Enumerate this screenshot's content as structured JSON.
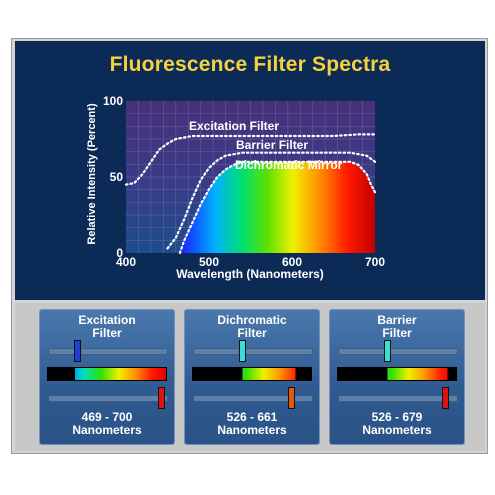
{
  "title": "Fluorescence Filter Spectra",
  "colors": {
    "title": "#f5d23c",
    "panel_bg": "#0b2a55",
    "card_bg": "#3a6aa0",
    "knob_blue": "#1f3fd8",
    "knob_cyan": "#37e0d6",
    "knob_red": "#e01010",
    "knob_orange": "#e05a10"
  },
  "chart_data": {
    "type": "line",
    "xlabel": "Wavelength (Nanometers)",
    "ylabel": "Relative Intensity (Percent)",
    "xlim": [
      400,
      700
    ],
    "ylim": [
      0,
      100
    ],
    "xticks": [
      "400",
      "500",
      "600",
      "700"
    ],
    "yticks": [
      "0",
      "50",
      "100"
    ],
    "grid": true,
    "series": [
      {
        "name": "Excitation Filter",
        "style": "dotted",
        "x": [
          400,
          410,
          420,
          430,
          440,
          450,
          460,
          470,
          480,
          500,
          550,
          600,
          650,
          680,
          700
        ],
        "y": [
          45,
          46,
          52,
          60,
          68,
          72,
          75,
          76,
          77,
          77,
          77,
          77,
          77,
          78,
          78
        ]
      },
      {
        "name": "Barrier Filter",
        "style": "dotted",
        "x": [
          450,
          460,
          470,
          480,
          490,
          500,
          510,
          520,
          530,
          540,
          560,
          600,
          650,
          670,
          690,
          700
        ],
        "y": [
          3,
          10,
          22,
          36,
          48,
          56,
          61,
          64,
          65,
          66,
          66,
          66,
          66,
          66,
          64,
          60
        ]
      },
      {
        "name": "Dichromatic Mirror",
        "style": "filled",
        "x": [
          465,
          470,
          480,
          490,
          500,
          510,
          520,
          530,
          540,
          560,
          600,
          650,
          670,
          680,
          690,
          695,
          700
        ],
        "y": [
          0,
          8,
          20,
          32,
          42,
          50,
          55,
          58,
          60,
          60,
          60,
          60,
          60,
          58,
          52,
          45,
          40
        ]
      }
    ]
  },
  "cards": [
    {
      "title_line1": "Excitation",
      "title_line2": "Filter",
      "range": "469 - 700",
      "unit": "Nanometers",
      "lower_knob_color": "#1f3fd8",
      "upper_knob_color": "#e01010",
      "band_start_nm": 469,
      "band_end_nm": 700
    },
    {
      "title_line1": "Dichromatic",
      "title_line2": "Filter",
      "range": "526 - 661",
      "unit": "Nanometers",
      "lower_knob_color": "#37e0d6",
      "upper_knob_color": "#e05a10",
      "band_start_nm": 526,
      "band_end_nm": 661
    },
    {
      "title_line1": "Barrier",
      "title_line2": "Filter",
      "range": "526 - 679",
      "unit": "Nanometers",
      "lower_knob_color": "#37e0d6",
      "upper_knob_color": "#e01010",
      "band_start_nm": 526,
      "band_end_nm": 679
    }
  ]
}
